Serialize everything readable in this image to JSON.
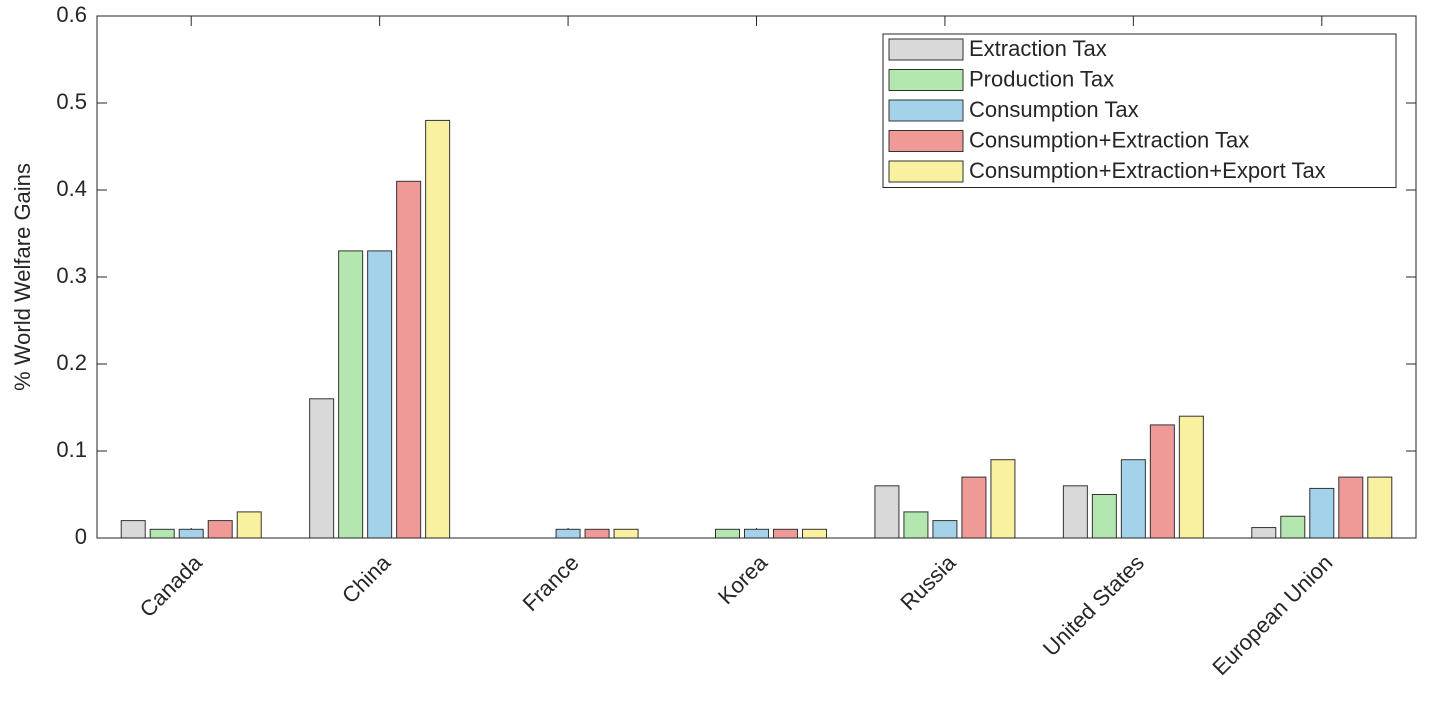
{
  "chart_data": {
    "type": "bar",
    "ylabel": "% World Welfare Gains",
    "categories": [
      "Canada",
      "China",
      "France",
      "Korea",
      "Russia",
      "United States",
      "European Union"
    ],
    "series": [
      {
        "name": "Extraction Tax",
        "color": "#d9d9d9",
        "values": [
          0.02,
          0.16,
          0,
          0,
          0.06,
          0.06,
          0.012
        ]
      },
      {
        "name": "Production Tax",
        "color": "#b4e6b0",
        "values": [
          0.01,
          0.33,
          0,
          0.01,
          0.03,
          0.05,
          0.025
        ]
      },
      {
        "name": "Consumption Tax",
        "color": "#a3d2ea",
        "values": [
          0.01,
          0.33,
          0.01,
          0.01,
          0.02,
          0.09,
          0.057
        ]
      },
      {
        "name": "Consumption+Extraction Tax",
        "color": "#f09a98",
        "values": [
          0.02,
          0.41,
          0.01,
          0.01,
          0.07,
          0.13,
          0.07
        ]
      },
      {
        "name": "Consumption+Extraction+Export Tax",
        "color": "#f9f1a0",
        "values": [
          0.03,
          0.48,
          0.01,
          0.01,
          0.09,
          0.14,
          0.07
        ]
      }
    ],
    "ylim": [
      0,
      0.6
    ],
    "yticks": [
      0,
      0.1,
      0.2,
      0.3,
      0.4,
      0.5,
      0.6
    ],
    "legend": "upper right"
  }
}
